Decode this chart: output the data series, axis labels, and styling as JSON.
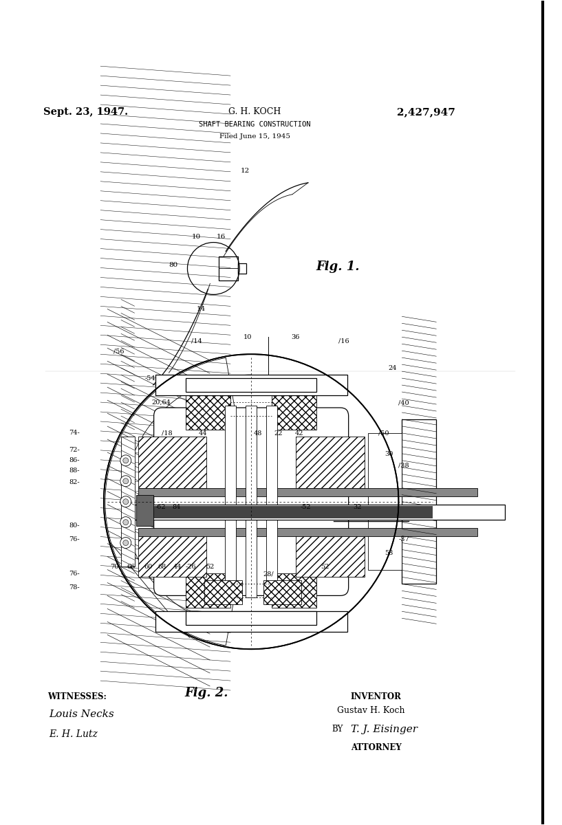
{
  "bg": "#ffffff",
  "page_width": 8.17,
  "page_height": 12.0,
  "header_date": "Sept. 23, 1947.",
  "header_name": "G. H. KOCH",
  "header_patent": "2,427,947",
  "header_title": "SHAFT BEARING CONSTRUCTION",
  "header_filed": "Filed June 15, 1945",
  "fig1_label": "Fig. 1.",
  "fig2_label": "Fig. 2.",
  "witnesses_label": "WITNESSES:",
  "witness1": "Louis Necks",
  "witness2": "E. H. Lutz",
  "inventor_label": "INVENTOR",
  "inventor_name": "Gustav H. Koch",
  "by_label": "BY",
  "attorney_sig": "T. J. Eisinger",
  "attorney_label": "ATTORNEY"
}
